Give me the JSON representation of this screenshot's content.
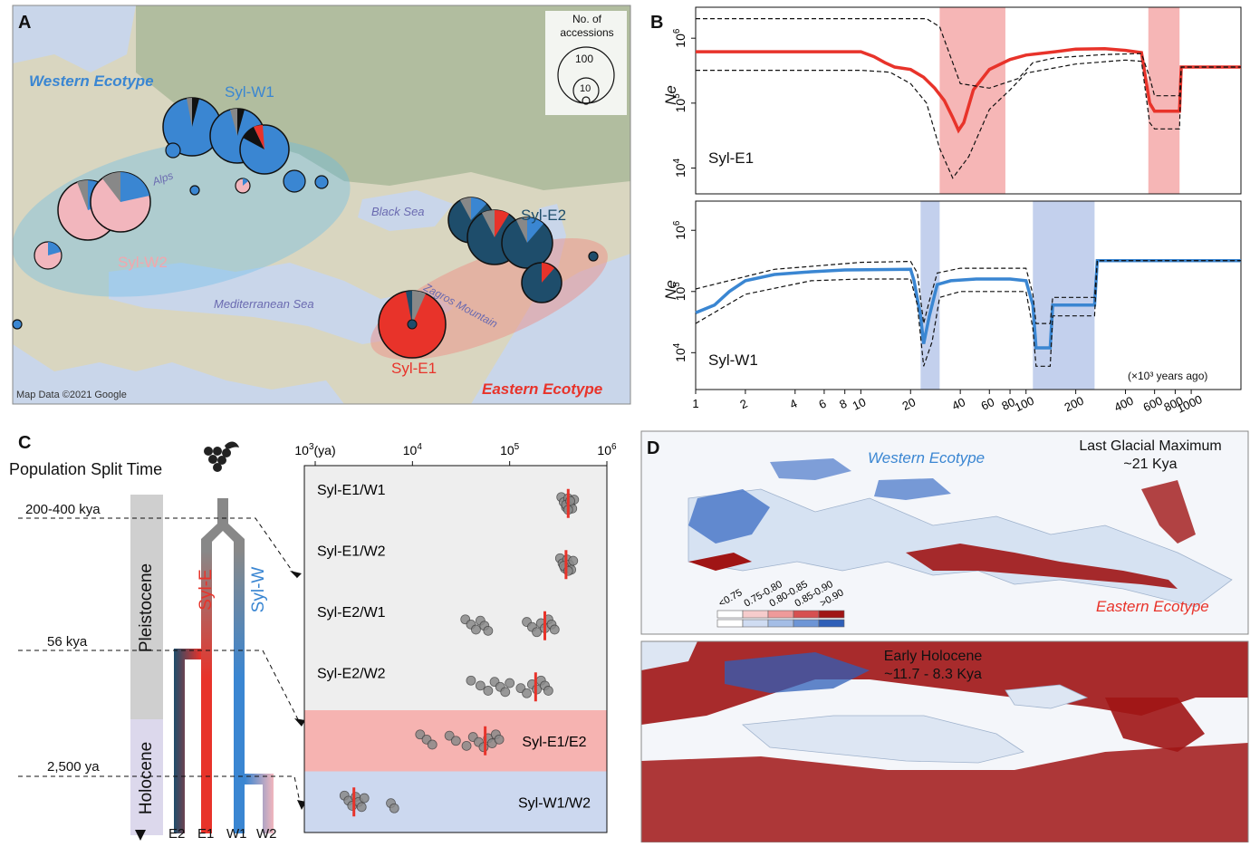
{
  "panel_labels": {
    "a": "A",
    "b": "B",
    "c": "C",
    "d": "D"
  },
  "colors": {
    "west": "#3a86d2",
    "east": "#e8332a",
    "e2": "#1e4d6b",
    "w2": "#f2b6bd",
    "grey": "#707070",
    "pink_band": "#f5a9a9",
    "blue_band": "#b9c8ea"
  },
  "map": {
    "western_ecotype": "Western Ecotype",
    "eastern_ecotype": "Eastern Ecotype",
    "pops": {
      "w1": "Syl-W1",
      "w2": "Syl-W2",
      "e1": "Syl-E1",
      "e2": "Syl-E2"
    },
    "places": {
      "alps": "Alps",
      "black_sea": "Black Sea",
      "zagros": "Zagros Mountain",
      "med": "Mediterranean Sea"
    },
    "legend_title": "No. of accessions",
    "legend_100": "100",
    "legend_10": "10",
    "credit": "Map Data ©2021 Google"
  },
  "chart_data": [
    {
      "type": "line",
      "panel": "B-top",
      "ylabel": "Ne",
      "series_label": "Syl-E1",
      "xscale": "log",
      "yscale": "log",
      "x_ticks": [
        "1",
        "2",
        "4",
        "6",
        "8",
        "10",
        "20",
        "40",
        "60",
        "80",
        "100",
        "200",
        "400",
        "600",
        "800",
        "1000"
      ],
      "y_ticks": [
        "10^4",
        "10^5",
        "10^6"
      ],
      "ylim": [
        4000,
        3000000
      ],
      "xlim": [
        1,
        2000
      ],
      "highlight_bands": [
        [
          30,
          75
        ],
        [
          550,
          850
        ]
      ],
      "series": [
        {
          "values": [
            [
              1,
              620000
            ],
            [
              10,
              620000
            ],
            [
              12,
              520000
            ],
            [
              14,
              420000
            ],
            [
              16,
              360000
            ],
            [
              20,
              330000
            ],
            [
              24,
              250000
            ],
            [
              28,
              170000
            ],
            [
              32,
              110000
            ],
            [
              36,
              60000
            ],
            [
              39,
              38000
            ],
            [
              42,
              50000
            ],
            [
              48,
              160000
            ],
            [
              60,
              330000
            ],
            [
              80,
              470000
            ],
            [
              100,
              550000
            ],
            [
              150,
              620000
            ],
            [
              200,
              680000
            ],
            [
              300,
              690000
            ],
            [
              400,
              650000
            ],
            [
              500,
              600000
            ],
            [
              560,
              100000
            ],
            [
              600,
              75000
            ],
            [
              850,
              75000
            ],
            [
              870,
              360000
            ],
            [
              2000,
              360000
            ]
          ]
        },
        {
          "values": [
            [
              1,
              2000000
            ],
            [
              25,
              2000000
            ],
            [
              30,
              1500000
            ],
            [
              40,
              200000
            ],
            [
              60,
              170000
            ],
            [
              90,
              240000
            ],
            [
              110,
              420000
            ],
            [
              150,
              500000
            ],
            [
              300,
              560000
            ],
            [
              500,
              580000
            ],
            [
              560,
              250000
            ],
            [
              600,
              130000
            ],
            [
              850,
              130000
            ],
            [
              870,
              360000
            ],
            [
              2000,
              360000
            ]
          ]
        },
        {
          "values": [
            [
              1,
              320000
            ],
            [
              10,
              320000
            ],
            [
              15,
              300000
            ],
            [
              20,
              200000
            ],
            [
              25,
              100000
            ],
            [
              30,
              20000
            ],
            [
              36,
              7000
            ],
            [
              45,
              15000
            ],
            [
              60,
              80000
            ],
            [
              80,
              160000
            ],
            [
              100,
              290000
            ],
            [
              200,
              400000
            ],
            [
              400,
              460000
            ],
            [
              500,
              440000
            ],
            [
              560,
              50000
            ],
            [
              600,
              40000
            ],
            [
              850,
              40000
            ],
            [
              870,
              360000
            ],
            [
              2000,
              360000
            ]
          ]
        }
      ]
    },
    {
      "type": "line",
      "panel": "B-bottom",
      "ylabel": "Ne",
      "series_label": "Syl-W1",
      "xscale": "log",
      "yscale": "log",
      "x_ticks": [
        "1",
        "2",
        "4",
        "6",
        "8",
        "10",
        "20",
        "40",
        "60",
        "80",
        "100",
        "200",
        "400",
        "600",
        "800",
        "1000"
      ],
      "y_ticks": [
        "10^4",
        "10^5",
        "10^6"
      ],
      "ylim": [
        2500,
        3000000
      ],
      "xlim": [
        1,
        2000
      ],
      "x_unit_label": "(×10³ years ago)",
      "highlight_bands": [
        [
          23,
          30
        ],
        [
          110,
          260
        ]
      ],
      "series": [
        {
          "values": [
            [
              1,
              45000
            ],
            [
              1.3,
              60000
            ],
            [
              1.6,
              100000
            ],
            [
              2,
              150000
            ],
            [
              3,
              190000
            ],
            [
              5,
              210000
            ],
            [
              8,
              225000
            ],
            [
              20,
              230000
            ],
            [
              21,
              150000
            ],
            [
              23,
              40000
            ],
            [
              24,
              14000
            ],
            [
              26,
              40000
            ],
            [
              29,
              130000
            ],
            [
              35,
              150000
            ],
            [
              50,
              160000
            ],
            [
              80,
              160000
            ],
            [
              100,
              150000
            ],
            [
              110,
              60000
            ],
            [
              115,
              12000
            ],
            [
              140,
              12000
            ],
            [
              145,
              60000
            ],
            [
              260,
              60000
            ],
            [
              270,
              320000
            ],
            [
              2000,
              320000
            ]
          ]
        },
        {
          "values": [
            [
              1,
              110000
            ],
            [
              3,
              230000
            ],
            [
              10,
              300000
            ],
            [
              20,
              310000
            ],
            [
              22,
              200000
            ],
            [
              24,
              30000
            ],
            [
              26,
              70000
            ],
            [
              29,
              200000
            ],
            [
              40,
              240000
            ],
            [
              100,
              240000
            ],
            [
              110,
              90000
            ],
            [
              115,
              30000
            ],
            [
              140,
              30000
            ],
            [
              145,
              80000
            ],
            [
              260,
              80000
            ],
            [
              270,
              320000
            ],
            [
              2000,
              320000
            ]
          ]
        },
        {
          "values": [
            [
              1,
              30000
            ],
            [
              2,
              90000
            ],
            [
              5,
              150000
            ],
            [
              10,
              160000
            ],
            [
              20,
              160000
            ],
            [
              22,
              60000
            ],
            [
              24,
              6000
            ],
            [
              27,
              15000
            ],
            [
              30,
              80000
            ],
            [
              40,
              100000
            ],
            [
              100,
              100000
            ],
            [
              110,
              25000
            ],
            [
              115,
              6000
            ],
            [
              140,
              6000
            ],
            [
              145,
              40000
            ],
            [
              260,
              40000
            ],
            [
              270,
              320000
            ],
            [
              2000,
              320000
            ]
          ]
        }
      ]
    },
    {
      "type": "scatter",
      "panel": "C",
      "title": "Population Split Time",
      "xscale": "log",
      "x_ticks": [
        "10³(ya)",
        "10⁴",
        "10⁵",
        "10⁶"
      ],
      "xlim": [
        1000,
        1000000
      ],
      "rows": [
        {
          "label": "Syl-E1/W1",
          "median": 400000,
          "points": [
            340000,
            360000,
            380000,
            400000,
            420000,
            440000,
            460000,
            380000,
            400000,
            420000
          ]
        },
        {
          "label": "Syl-E1/W2",
          "median": 380000,
          "points": [
            330000,
            350000,
            370000,
            390000,
            410000,
            430000,
            450000,
            360000,
            400000
          ]
        },
        {
          "label": "Syl-E2/W1",
          "median": 230000,
          "points": [
            35000,
            40000,
            45000,
            50000,
            55000,
            60000,
            150000,
            170000,
            190000,
            210000,
            230000,
            250000,
            270000,
            290000
          ]
        },
        {
          "label": "Syl-E2/W2",
          "median": 185000,
          "points": [
            40000,
            50000,
            60000,
            70000,
            80000,
            90000,
            100000,
            130000,
            150000,
            170000,
            190000,
            210000,
            230000,
            250000
          ]
        },
        {
          "label": "Syl-E1/E2",
          "median": 56000,
          "points": [
            12000,
            14000,
            16000,
            24000,
            28000,
            36000,
            42000,
            48000,
            54000,
            60000,
            66000,
            72000,
            78000
          ]
        },
        {
          "label": "Syl-W1/W2",
          "median": 2500,
          "points": [
            2000,
            2200,
            2400,
            2600,
            2800,
            3000,
            3200,
            6000,
            6500
          ]
        }
      ]
    }
  ],
  "tree": {
    "epochs": {
      "pleistocene": "Pleistocene",
      "holocene": "Holocene"
    },
    "times": {
      "t1": "200-400 kya",
      "t2": "56 kya",
      "t3": "2,500 ya"
    },
    "branches": {
      "syl_e": "Syl-E",
      "syl_w": "Syl-W"
    },
    "tips": [
      "E2",
      "E1",
      "W1",
      "W2"
    ]
  },
  "sdm": {
    "top_title_1": "Last Glacial Maximum",
    "top_title_2": "~21 Kya",
    "bottom_title_1": "Early Holocene",
    "bottom_title_2": "~11.7 - 8.3 Kya",
    "western": "Western Ecotype",
    "eastern": "Eastern Ecotype",
    "legend": [
      "<0.75",
      "0.75-0.80",
      "0.80-0.85",
      "0.85-0.90",
      ">0.90"
    ],
    "legend_red": [
      "#ffffff",
      "#f6cccc",
      "#ef9a9a",
      "#d65050",
      "#a01515"
    ],
    "legend_blue": [
      "#ffffff",
      "#cfdcf2",
      "#a4bde6",
      "#6d95d6",
      "#2f5fb8"
    ]
  }
}
